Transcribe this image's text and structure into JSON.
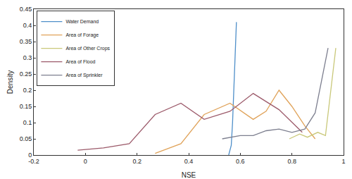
{
  "chart_data": {
    "type": "line",
    "x_label": "NSE",
    "y_label": "Density",
    "xlim": [
      -0.2,
      1
    ],
    "xticks": [
      -0.2,
      0,
      0.2,
      0.4,
      0.6,
      0.8,
      1
    ],
    "ylim": [
      0,
      0.45
    ],
    "yticks": [
      0,
      0.05,
      0.1,
      0.15,
      0.2,
      0.25,
      0.3,
      0.35,
      0.4,
      0.45
    ],
    "grid": false,
    "legend": "top-left",
    "series": [
      {
        "name": "Water Demand",
        "color": "#4f8fc9",
        "x": [
          0.555,
          0.565,
          0.57,
          0.575,
          0.58,
          0.585
        ],
        "values": [
          0,
          0.03,
          0.1,
          0.2,
          0.3,
          0.41
        ]
      },
      {
        "name": "Area of Forage",
        "color": "#e0a35a",
        "x": [
          0.27,
          0.37,
          0.46,
          0.56,
          0.65,
          0.7,
          0.75,
          0.8,
          0.85,
          0.89
        ],
        "values": [
          0.005,
          0.035,
          0.125,
          0.16,
          0.11,
          0.135,
          0.2,
          0.15,
          0.09,
          0.05
        ]
      },
      {
        "name": "Area of Other Crops",
        "color": "#c9c87a",
        "x": [
          0.79,
          0.83,
          0.86,
          0.9,
          0.93,
          0.97
        ],
        "values": [
          0.05,
          0.065,
          0.055,
          0.07,
          0.06,
          0.33
        ]
      },
      {
        "name": "Area of Flood",
        "color": "#9c5a6a",
        "x": [
          -0.03,
          0.07,
          0.17,
          0.27,
          0.37,
          0.46,
          0.56,
          0.65,
          0.75,
          0.84
        ],
        "values": [
          0.015,
          0.022,
          0.035,
          0.125,
          0.16,
          0.11,
          0.135,
          0.19,
          0.14,
          0.07
        ]
      },
      {
        "name": "Area of Sprinkler",
        "color": "#7d7f8f",
        "x": [
          0.53,
          0.6,
          0.65,
          0.7,
          0.75,
          0.8,
          0.85,
          0.89,
          0.94
        ],
        "values": [
          0.05,
          0.06,
          0.06,
          0.075,
          0.08,
          0.07,
          0.08,
          0.13,
          0.33
        ]
      }
    ]
  }
}
